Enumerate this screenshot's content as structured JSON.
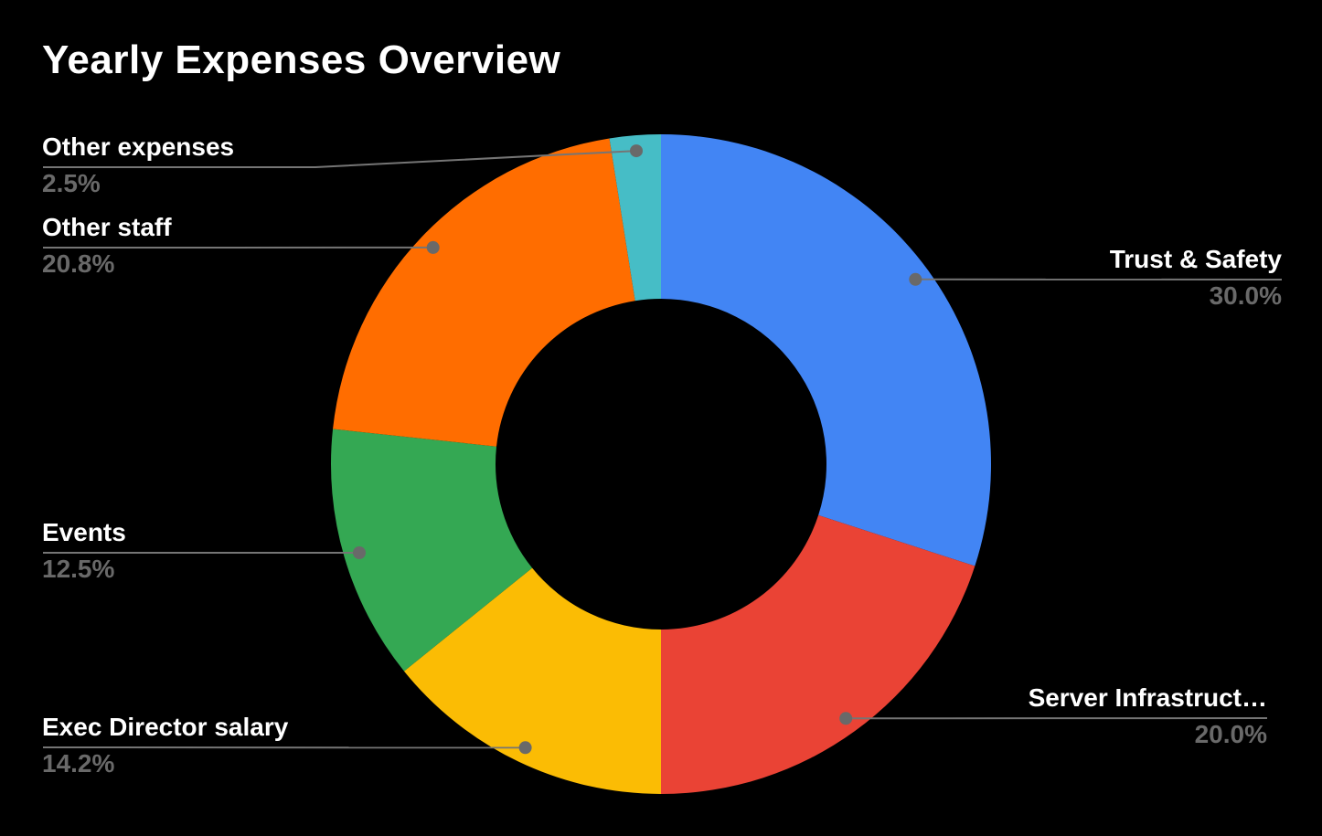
{
  "page": {
    "background": "#000000"
  },
  "chart_data": {
    "type": "pie",
    "subtype": "donut",
    "title": "Yearly Expenses Overview",
    "donut_hole_ratio": 0.5,
    "start_angle_deg": 0,
    "direction": "clockwise",
    "total_pct": 100,
    "slices": [
      {
        "label": "Trust & Safety",
        "value_pct": 30.0,
        "pct_label": "30.0%",
        "color": "#4285F4",
        "label_side": "right"
      },
      {
        "label": "Server Infrastruct…",
        "value_pct": 20.0,
        "pct_label": "20.0%",
        "color": "#EA4335",
        "label_side": "right"
      },
      {
        "label": "Exec Director salary",
        "value_pct": 14.2,
        "pct_label": "14.2%",
        "color": "#FBBC04",
        "label_side": "left"
      },
      {
        "label": "Events",
        "value_pct": 12.5,
        "pct_label": "12.5%",
        "color": "#34A853",
        "label_side": "left"
      },
      {
        "label": "Other staff",
        "value_pct": 20.8,
        "pct_label": "20.8%",
        "color": "#FF6D00",
        "label_side": "left"
      },
      {
        "label": "Other expenses",
        "value_pct": 2.5,
        "pct_label": "2.5%",
        "color": "#46BDC6",
        "label_side": "left"
      }
    ],
    "style": {
      "title_color": "#FFFFFF",
      "label_color": "#FFFFFF",
      "pct_color": "#696969",
      "leader_line_color": "#757575",
      "leader_dot_color": "#696969",
      "background": "#000000"
    }
  }
}
